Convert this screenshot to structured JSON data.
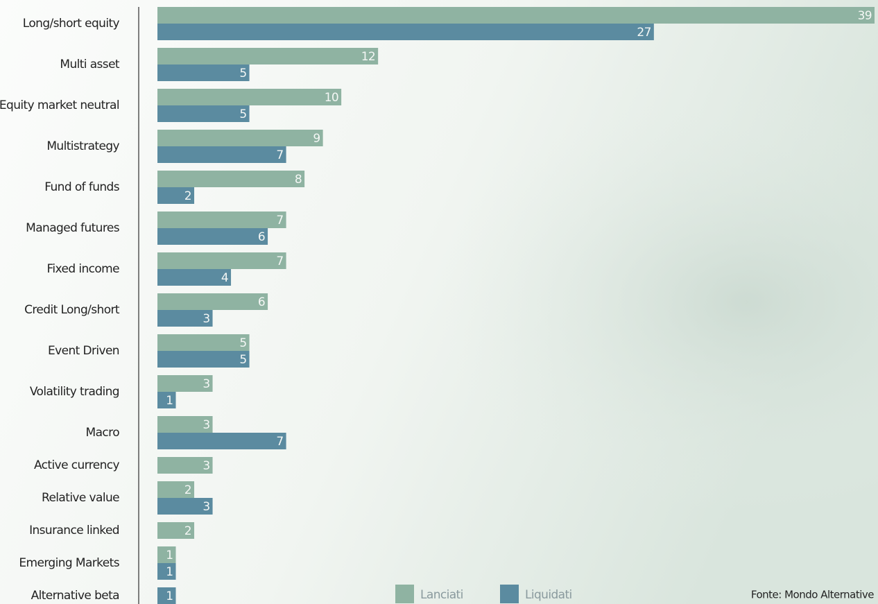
{
  "chart_data": {
    "type": "bar",
    "orientation": "horizontal",
    "categories": [
      "Long/short equity",
      "Multi asset",
      "Equity market neutral",
      "Multistrategy",
      "Fund of funds",
      "Managed futures",
      "Fixed income",
      "Credit Long/short",
      "Event Driven",
      "Volatility trading",
      "Macro",
      "Active currency",
      "Relative value",
      "Insurance linked",
      "Emerging Markets",
      "Alternative beta"
    ],
    "series": [
      {
        "name": "Lanciati",
        "color": "#8fb3a2",
        "values": [
          39,
          12,
          10,
          9,
          8,
          7,
          7,
          6,
          5,
          3,
          3,
          3,
          2,
          2,
          1,
          null
        ]
      },
      {
        "name": "Liquidati",
        "color": "#5b8ba0",
        "values": [
          27,
          5,
          5,
          7,
          2,
          6,
          4,
          3,
          5,
          1,
          7,
          null,
          3,
          null,
          1,
          1
        ]
      }
    ],
    "source": "Fonte: Mondo Alternative"
  }
}
